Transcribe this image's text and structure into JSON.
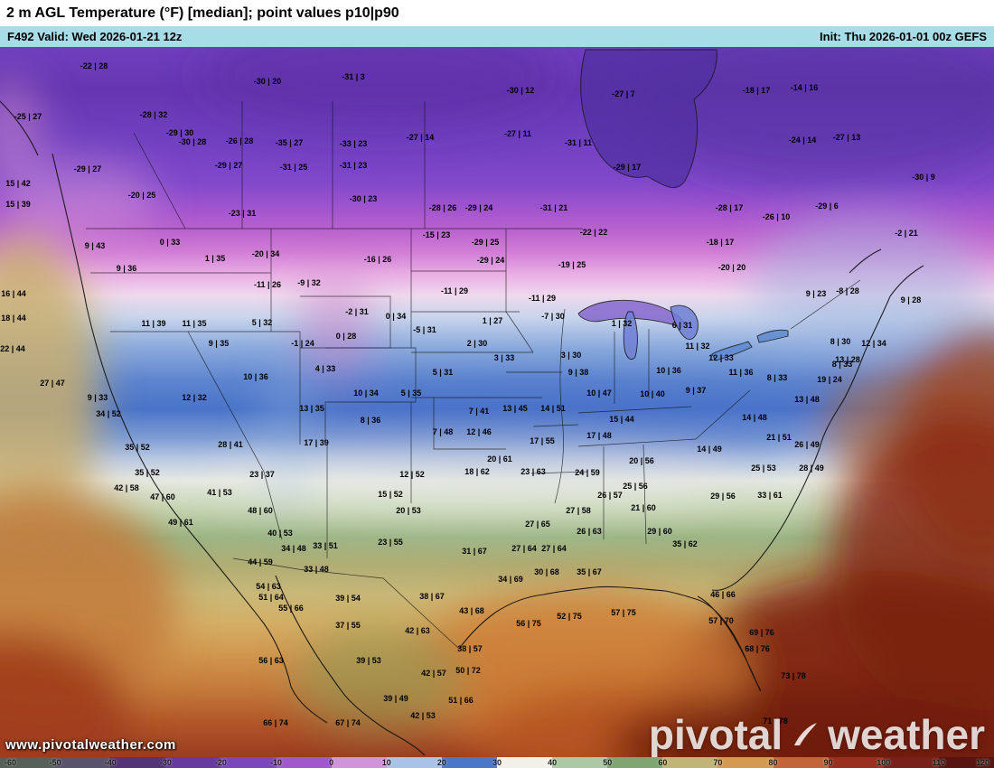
{
  "header": {
    "title": "2 m AGL Temperature (°F) [median]; point values p10|p90",
    "valid": "F492 Valid: Wed 2026-01-21 12z",
    "init": "Init: Thu 2026-01-01 00z GEFS"
  },
  "watermark": {
    "url": "www.pivotalweather.com",
    "brand_first": "pivotal",
    "brand_second": "weather"
  },
  "colorbar": {
    "unit_labels": [
      "-60",
      "-50",
      "-40",
      "-30",
      "-20",
      "-10",
      "0",
      "10",
      "20",
      "30",
      "40",
      "50",
      "60",
      "70",
      "80",
      "90",
      "100",
      "110",
      "120"
    ],
    "segment_colors": [
      "#566058",
      "#59536e",
      "#533577",
      "#663a9f",
      "#7b47bd",
      "#a058cc",
      "#d193da",
      "#a9c3e8",
      "#4b77c9",
      "#f1f1ea",
      "#abc9a2",
      "#7fa571",
      "#c0b476",
      "#d49a52",
      "#c2653a",
      "#992f1e",
      "#77211a",
      "#571410"
    ]
  },
  "map": {
    "point_values": [
      [
        104,
        73,
        "-22 | 28"
      ],
      [
        296,
        90,
        "-30 | 20"
      ],
      [
        391,
        85,
        "-31 | 3"
      ],
      [
        576,
        100,
        "-30 | 12"
      ],
      [
        690,
        104,
        "-27 | 7"
      ],
      [
        837,
        100,
        "-18 | 17"
      ],
      [
        890,
        97,
        "-14 | 16"
      ],
      [
        31,
        129,
        "-25 | 27"
      ],
      [
        170,
        127,
        "-28 | 32"
      ],
      [
        199,
        147,
        "-29 | 30"
      ],
      [
        213,
        157,
        "-30 | 28"
      ],
      [
        265,
        156,
        "-26 | 28"
      ],
      [
        320,
        158,
        "-35 | 27"
      ],
      [
        391,
        159,
        "-33 | 23"
      ],
      [
        465,
        152,
        "-27 | 14"
      ],
      [
        573,
        148,
        "-27 | 11"
      ],
      [
        640,
        158,
        "-31 | 11"
      ],
      [
        888,
        155,
        "-24 | 14"
      ],
      [
        937,
        152,
        "-27 | 13"
      ],
      [
        97,
        187,
        "-29 | 27"
      ],
      [
        253,
        183,
        "-29 | 27"
      ],
      [
        325,
        185,
        "-31 | 25"
      ],
      [
        391,
        183,
        "-31 | 23"
      ],
      [
        694,
        185,
        "-29 | 17"
      ],
      [
        1022,
        196,
        "-30 | 9"
      ],
      [
        20,
        203,
        "15 | 42"
      ],
      [
        157,
        216,
        "-20 | 25"
      ],
      [
        268,
        236,
        "-23 | 31"
      ],
      [
        402,
        220,
        "-30 | 23"
      ],
      [
        490,
        230,
        "-28 | 26"
      ],
      [
        530,
        230,
        "-29 | 24"
      ],
      [
        613,
        230,
        "-31 | 21"
      ],
      [
        807,
        230,
        "-28 | 17"
      ],
      [
        859,
        240,
        "-26 | 10"
      ],
      [
        915,
        228,
        "-29 | 6"
      ],
      [
        20,
        226,
        "15 | 39"
      ],
      [
        105,
        272,
        "9 | 43"
      ],
      [
        188,
        268,
        "0 | 33"
      ],
      [
        238,
        286,
        "1 | 35"
      ],
      [
        294,
        281,
        "-20 | 34"
      ],
      [
        418,
        287,
        "-16 | 26"
      ],
      [
        483,
        260,
        "-15 | 23"
      ],
      [
        537,
        268,
        "-29 | 25"
      ],
      [
        543,
        288,
        "-29 | 24"
      ],
      [
        657,
        257,
        "-22 | 22"
      ],
      [
        797,
        268,
        "-18 | 17"
      ],
      [
        810,
        296,
        "-20 | 20"
      ],
      [
        1003,
        258,
        "-2 | 21"
      ],
      [
        140,
        297,
        "9 | 36"
      ],
      [
        296,
        315,
        "-11 | 26"
      ],
      [
        342,
        313,
        "-9 | 32"
      ],
      [
        503,
        322,
        "-11 | 29"
      ],
      [
        600,
        330,
        "-11 | 29"
      ],
      [
        633,
        293,
        "-19 | 25"
      ],
      [
        612,
        350,
        "-7 | 30"
      ],
      [
        903,
        325,
        "9 | 23"
      ],
      [
        938,
        322,
        "-8 | 28"
      ],
      [
        1008,
        332,
        "9 | 28"
      ],
      [
        15,
        325,
        "16 | 44"
      ],
      [
        15,
        352,
        "18 | 44"
      ],
      [
        14,
        386,
        "22 | 44"
      ],
      [
        58,
        424,
        "27 | 47"
      ],
      [
        108,
        440,
        "9 | 33"
      ],
      [
        170,
        358,
        "11 | 39"
      ],
      [
        215,
        358,
        "11 | 35"
      ],
      [
        242,
        380,
        "9 | 35"
      ],
      [
        290,
        357,
        "5 | 32"
      ],
      [
        335,
        380,
        "-1 | 24"
      ],
      [
        383,
        372,
        "0 | 28"
      ],
      [
        395,
        345,
        "-2 | 31"
      ],
      [
        438,
        350,
        "0 | 34"
      ],
      [
        283,
        417,
        "10 | 36"
      ],
      [
        360,
        408,
        "4 | 33"
      ],
      [
        405,
        435,
        "10 | 34"
      ],
      [
        455,
        435,
        "5 | 35"
      ],
      [
        345,
        452,
        "13 | 35"
      ],
      [
        410,
        465,
        "8 | 36"
      ],
      [
        215,
        440,
        "12 | 32"
      ],
      [
        470,
        365,
        "-5 | 31"
      ],
      [
        545,
        355,
        "1 | 27"
      ],
      [
        528,
        380,
        "2 | 30"
      ],
      [
        558,
        396,
        "3 | 33"
      ],
      [
        632,
        393,
        "3 | 30"
      ],
      [
        490,
        412,
        "5 | 31"
      ],
      [
        640,
        412,
        "9 | 38"
      ],
      [
        688,
        358,
        "1 | 32"
      ],
      [
        755,
        360,
        "6 | 31"
      ],
      [
        772,
        383,
        "11 | 32"
      ],
      [
        740,
        410,
        "10 | 36"
      ],
      [
        663,
        435,
        "10 | 47"
      ],
      [
        722,
        436,
        "10 | 40"
      ],
      [
        770,
        432,
        "9 | 37"
      ],
      [
        530,
        455,
        "7 | 41"
      ],
      [
        570,
        452,
        "13 | 45"
      ],
      [
        612,
        452,
        "14 | 51"
      ],
      [
        530,
        478,
        "12 | 46"
      ],
      [
        490,
        478,
        "7 | 48"
      ],
      [
        600,
        488,
        "17 | 55"
      ],
      [
        663,
        482,
        "17 | 48"
      ],
      [
        688,
        464,
        "15 | 44"
      ],
      [
        930,
        378,
        "8 | 30"
      ],
      [
        932,
        403,
        "8 | 33"
      ],
      [
        860,
        418,
        "8 | 33"
      ],
      [
        967,
        380,
        "12 | 34"
      ],
      [
        938,
        398,
        "13 | 28"
      ],
      [
        918,
        420,
        "19 | 24"
      ],
      [
        798,
        396,
        "12 | 33"
      ],
      [
        820,
        412,
        "11 | 36"
      ],
      [
        835,
        462,
        "14 | 48"
      ],
      [
        893,
        442,
        "13 | 48"
      ],
      [
        862,
        484,
        "21 | 51"
      ],
      [
        893,
        492,
        "26 | 49"
      ],
      [
        845,
        518,
        "25 | 53"
      ],
      [
        898,
        518,
        "28 | 49"
      ],
      [
        800,
        549,
        "29 | 56"
      ],
      [
        852,
        548,
        "33 | 61"
      ],
      [
        785,
        497,
        "14 | 49"
      ],
      [
        710,
        510,
        "20 | 56"
      ],
      [
        650,
        523,
        "24 | 59"
      ],
      [
        553,
        508,
        "20 | 61"
      ],
      [
        528,
        522,
        "18 | 62"
      ],
      [
        590,
        522,
        "23 | 63"
      ],
      [
        675,
        548,
        "26 | 57"
      ],
      [
        703,
        538,
        "25 | 56"
      ],
      [
        640,
        565,
        "27 | 58"
      ],
      [
        712,
        562,
        "21 | 60"
      ],
      [
        595,
        580,
        "27 | 65"
      ],
      [
        652,
        588,
        "26 | 63"
      ],
      [
        730,
        588,
        "29 | 60"
      ],
      [
        758,
        602,
        "35 | 62"
      ],
      [
        580,
        607,
        "27 | 64"
      ],
      [
        613,
        607,
        "27 | 64"
      ],
      [
        525,
        610,
        "31 | 67"
      ],
      [
        565,
        641,
        "34 | 69"
      ],
      [
        605,
        633,
        "30 | 68"
      ],
      [
        652,
        633,
        "35 | 67"
      ],
      [
        120,
        458,
        "34 | 52"
      ],
      [
        152,
        495,
        "35 | 52"
      ],
      [
        163,
        523,
        "35 | 52"
      ],
      [
        140,
        540,
        "42 | 58"
      ],
      [
        180,
        550,
        "47 | 60"
      ],
      [
        243,
        545,
        "41 | 53"
      ],
      [
        200,
        578,
        "49 | 61"
      ],
      [
        288,
        565,
        "48 | 60"
      ],
      [
        255,
        492,
        "28 | 41"
      ],
      [
        290,
        525,
        "23 | 37"
      ],
      [
        350,
        490,
        "17 | 39"
      ],
      [
        310,
        590,
        "40 | 53"
      ],
      [
        325,
        607,
        "34 | 48"
      ],
      [
        360,
        604,
        "33 | 51"
      ],
      [
        288,
        622,
        "44 | 59"
      ],
      [
        350,
        630,
        "33 | 48"
      ],
      [
        456,
        525,
        "12 | 52"
      ],
      [
        432,
        547,
        "15 | 52"
      ],
      [
        452,
        565,
        "20 | 53"
      ],
      [
        432,
        600,
        "23 | 55"
      ],
      [
        478,
        660,
        "38 | 67"
      ],
      [
        462,
        698,
        "42 | 63"
      ],
      [
        522,
        676,
        "43 | 68"
      ],
      [
        520,
        718,
        "38 | 57"
      ],
      [
        518,
        742,
        "50 | 72"
      ],
      [
        480,
        745,
        "42 | 57"
      ],
      [
        510,
        775,
        "51 | 66"
      ],
      [
        438,
        773,
        "39 | 49"
      ],
      [
        468,
        792,
        "42 | 53"
      ],
      [
        297,
        649,
        "54 | 63"
      ],
      [
        300,
        661,
        "51 | 64"
      ],
      [
        322,
        673,
        "55 | 66"
      ],
      [
        385,
        662,
        "39 | 54"
      ],
      [
        385,
        692,
        "37 | 55"
      ],
      [
        408,
        731,
        "39 | 53"
      ],
      [
        300,
        731,
        "56 | 63"
      ],
      [
        305,
        800,
        "66 | 74"
      ],
      [
        385,
        800,
        "67 | 74"
      ],
      [
        800,
        658,
        "46 | 66"
      ],
      [
        798,
        687,
        "57 | 70"
      ],
      [
        843,
        700,
        "69 | 76"
      ],
      [
        838,
        718,
        "68 | 76"
      ],
      [
        878,
        748,
        "73 | 78"
      ],
      [
        585,
        690,
        "56 | 75"
      ],
      [
        630,
        682,
        "52 | 75"
      ],
      [
        690,
        678,
        "57 | 75"
      ],
      [
        858,
        798,
        "71 | 78"
      ]
    ]
  }
}
